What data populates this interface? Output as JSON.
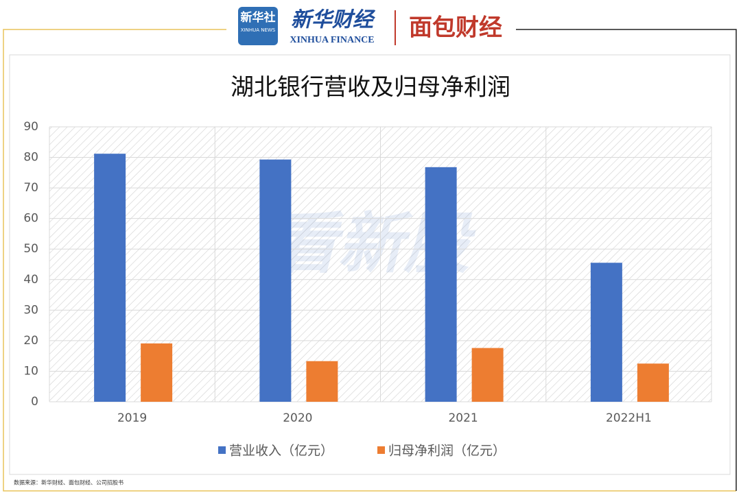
{
  "header": {
    "xinhua_news": "新华社",
    "xinhua_news_en": "XINHUA NEWS",
    "xinhua_finance": "新华财经",
    "xinhua_finance_en": "XINHUA FINANCE",
    "mianbao": "面包财经"
  },
  "watermark": "看新股",
  "chart_data": {
    "type": "bar",
    "title": "湖北银行营收及归母净利润",
    "categories": [
      "2019",
      "2020",
      "2021",
      "2022H1"
    ],
    "series": [
      {
        "name": "营业收入（亿元）",
        "color": "#4472c4",
        "values": [
          81.2,
          79.3,
          76.8,
          45.5
        ]
      },
      {
        "name": "归母净利润（亿元）",
        "color": "#ed7d31",
        "values": [
          19.1,
          13.3,
          17.6,
          12.5
        ]
      }
    ],
    "ylim": [
      0,
      90
    ],
    "yticks": [
      0,
      10,
      20,
      30,
      40,
      50,
      60,
      70,
      80,
      90
    ],
    "grid": true,
    "legend": "bottom"
  },
  "footer": {
    "source": "数据来源：新华财经、面包财经、公司招股书"
  }
}
